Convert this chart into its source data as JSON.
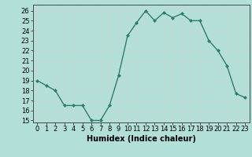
{
  "x": [
    0,
    1,
    2,
    3,
    4,
    5,
    6,
    7,
    8,
    9,
    10,
    11,
    12,
    13,
    14,
    15,
    16,
    17,
    18,
    19,
    20,
    21,
    22,
    23
  ],
  "y": [
    19,
    18.5,
    18,
    16.5,
    16.5,
    16.5,
    15,
    15,
    16.5,
    19.5,
    23.5,
    24.8,
    26,
    25,
    25.8,
    25.3,
    25.7,
    25,
    25,
    23,
    22,
    20.5,
    17.7,
    17.3
  ],
  "line_color": "#2e7d6e",
  "marker": "D",
  "marker_size": 2.0,
  "bg_color": "#b2e0d8",
  "grid_color": "#c8d8d4",
  "xlabel": "Humidex (Indice chaleur)",
  "ylim": [
    14.8,
    26.6
  ],
  "yticks": [
    15,
    16,
    17,
    18,
    19,
    20,
    21,
    22,
    23,
    24,
    25,
    26
  ],
  "xticks": [
    0,
    1,
    2,
    3,
    4,
    5,
    6,
    7,
    8,
    9,
    10,
    11,
    12,
    13,
    14,
    15,
    16,
    17,
    18,
    19,
    20,
    21,
    22,
    23
  ],
  "xtick_labels": [
    "0",
    "1",
    "2",
    "3",
    "4",
    "5",
    "6",
    "7",
    "8",
    "9",
    "10",
    "11",
    "12",
    "13",
    "14",
    "15",
    "16",
    "17",
    "18",
    "19",
    "20",
    "21",
    "22",
    "23"
  ],
  "xlabel_fontsize": 7,
  "tick_fontsize": 6,
  "linewidth": 1.0,
  "spine_color": "#4a4a4a"
}
